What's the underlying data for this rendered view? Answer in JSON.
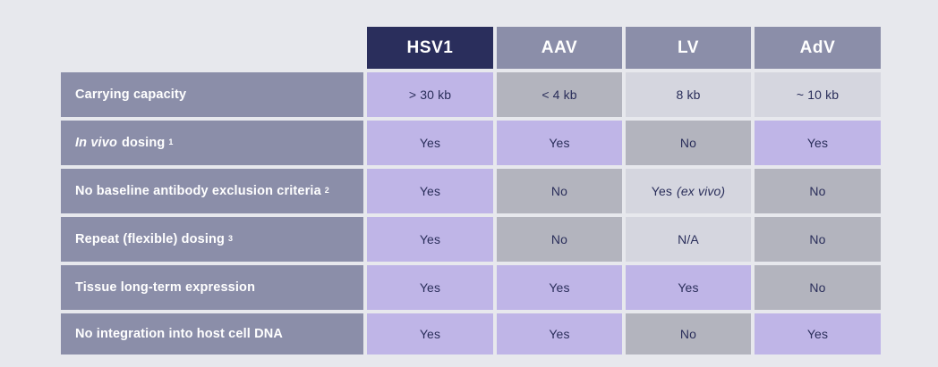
{
  "colors": {
    "background": "#e7e8ed",
    "navy_header": "#2a2e5c",
    "gray_header": "#8b8ea9",
    "purple_cell": "#bfb5e7",
    "gray_cell": "#b3b4be",
    "light_gray_cell": "#d5d6df",
    "text_navy": "#2a2e5a",
    "text_white": "#ffffff"
  },
  "table": {
    "columns": [
      {
        "label": "HSV1",
        "variant": "navy"
      },
      {
        "label": "AAV",
        "variant": "head"
      },
      {
        "label": "LV",
        "variant": "head"
      },
      {
        "label": "AdV",
        "variant": "head"
      }
    ],
    "rows": [
      {
        "label": {
          "italic": "",
          "text": "Carrying capacity",
          "sup": ""
        },
        "cells": [
          {
            "text": "> 30 kb",
            "italic": "",
            "variant": "purple"
          },
          {
            "text": "< 4 kb",
            "italic": "",
            "variant": "gray"
          },
          {
            "text": "8 kb",
            "italic": "",
            "variant": "light"
          },
          {
            "text": "~ 10 kb",
            "italic": "",
            "variant": "light"
          }
        ]
      },
      {
        "label": {
          "italic": "In vivo",
          "text": "dosing",
          "sup": "1"
        },
        "cells": [
          {
            "text": "Yes",
            "italic": "",
            "variant": "purple"
          },
          {
            "text": "Yes",
            "italic": "",
            "variant": "purple"
          },
          {
            "text": "No",
            "italic": "",
            "variant": "gray"
          },
          {
            "text": "Yes",
            "italic": "",
            "variant": "purple"
          }
        ]
      },
      {
        "label": {
          "italic": "",
          "text": "No baseline antibody exclusion criteria",
          "sup": "2"
        },
        "cells": [
          {
            "text": "Yes",
            "italic": "",
            "variant": "purple"
          },
          {
            "text": "No",
            "italic": "",
            "variant": "gray"
          },
          {
            "text": "Yes",
            "italic": "(ex vivo)",
            "variant": "light"
          },
          {
            "text": "No",
            "italic": "",
            "variant": "gray"
          }
        ]
      },
      {
        "label": {
          "italic": "",
          "text": "Repeat (flexible) dosing",
          "sup": "3"
        },
        "cells": [
          {
            "text": "Yes",
            "italic": "",
            "variant": "purple"
          },
          {
            "text": "No",
            "italic": "",
            "variant": "gray"
          },
          {
            "text": "N/A",
            "italic": "",
            "variant": "light"
          },
          {
            "text": "No",
            "italic": "",
            "variant": "gray"
          }
        ]
      },
      {
        "label": {
          "italic": "",
          "text": "Tissue long-term expression",
          "sup": ""
        },
        "cells": [
          {
            "text": "Yes",
            "italic": "",
            "variant": "purple"
          },
          {
            "text": "Yes",
            "italic": "",
            "variant": "purple"
          },
          {
            "text": "Yes",
            "italic": "",
            "variant": "purple"
          },
          {
            "text": "No",
            "italic": "",
            "variant": "gray"
          }
        ]
      },
      {
        "label": {
          "italic": "",
          "text": "No integration into host cell DNA",
          "sup": ""
        },
        "cells": [
          {
            "text": "Yes",
            "italic": "",
            "variant": "purple"
          },
          {
            "text": "Yes",
            "italic": "",
            "variant": "purple"
          },
          {
            "text": "No",
            "italic": "",
            "variant": "gray"
          },
          {
            "text": "Yes",
            "italic": "",
            "variant": "purple"
          }
        ]
      }
    ]
  },
  "chart_data": {
    "type": "table",
    "title": "",
    "columns": [
      "",
      "HSV1",
      "AAV",
      "LV",
      "AdV"
    ],
    "rows": [
      [
        "Carrying capacity",
        "> 30 kb",
        "< 4 kb",
        "8 kb",
        "~ 10 kb"
      ],
      [
        "In vivo dosing 1",
        "Yes",
        "Yes",
        "No",
        "Yes"
      ],
      [
        "No baseline antibody exclusion criteria 2",
        "Yes",
        "No",
        "Yes (ex vivo)",
        "No"
      ],
      [
        "Repeat (flexible) dosing 3",
        "Yes",
        "No",
        "N/A",
        "No"
      ],
      [
        "Tissue long-term expression",
        "Yes",
        "Yes",
        "Yes",
        "No"
      ],
      [
        "No integration into host cell DNA",
        "Yes",
        "Yes",
        "No",
        "Yes"
      ]
    ],
    "legend_semantics": {
      "purple_cell": "favorable / yes",
      "gray_cell": "unfavorable / no",
      "light_gray_cell": "neutral / qualified"
    }
  }
}
